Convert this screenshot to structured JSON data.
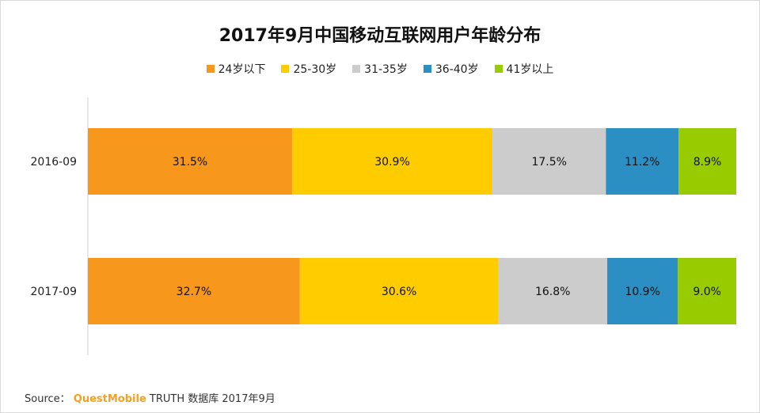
{
  "chart_data": {
    "type": "bar",
    "orientation": "horizontal",
    "stacked": true,
    "percent": true,
    "title": "2017年9月中国移动互联网用户年龄分布",
    "categories": [
      "2016-09",
      "2017-09"
    ],
    "series": [
      {
        "name": "24岁以下",
        "color": "#f7981d",
        "values": [
          31.5,
          32.7
        ],
        "labels": [
          "31.5%",
          "32.7%"
        ]
      },
      {
        "name": "25-30岁",
        "color": "#ffcc00",
        "values": [
          30.9,
          30.6
        ],
        "labels": [
          "30.9%",
          "30.6%"
        ]
      },
      {
        "name": "31-35岁",
        "color": "#cccccc",
        "values": [
          17.5,
          16.8
        ],
        "labels": [
          "17.5%",
          "16.8%"
        ]
      },
      {
        "name": "36-40岁",
        "color": "#2b8fc3",
        "values": [
          11.2,
          10.9
        ],
        "labels": [
          "11.2%",
          "10.9%"
        ]
      },
      {
        "name": "41岁以上",
        "color": "#99cc00",
        "values": [
          8.9,
          9.0
        ],
        "labels": [
          "8.9%",
          "9.0%"
        ]
      }
    ],
    "xlim": [
      0,
      100
    ],
    "legend_position": "top",
    "grid": false
  },
  "source": {
    "prefix": "Source：",
    "brand": "QuestMobile",
    "suffix": "TRUTH 数据库 2017年9月"
  }
}
